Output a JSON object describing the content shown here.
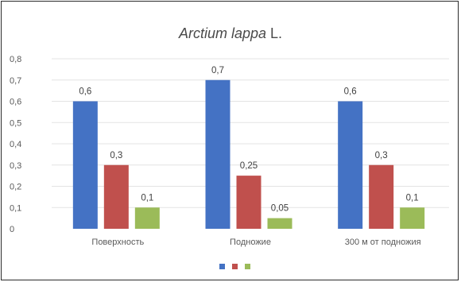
{
  "chart_data": {
    "type": "bar",
    "title": "Arctium lappa L.",
    "title_parts": [
      "Arctium lappa",
      " L."
    ],
    "categories": [
      "Поверхность",
      "Подножие",
      "300 м от подножия"
    ],
    "series": [
      {
        "values": [
          0.6,
          0.7,
          0.6
        ],
        "labels": [
          "0,6",
          "0,7",
          "0,6"
        ],
        "color": "#4472C4"
      },
      {
        "values": [
          0.3,
          0.25,
          0.3
        ],
        "labels": [
          "0,3",
          "0,25",
          "0,3"
        ],
        "color": "#C0504D"
      },
      {
        "values": [
          0.1,
          0.05,
          0.1
        ],
        "labels": [
          "0,1",
          "0,05",
          "0,1"
        ],
        "color": "#9BBB59"
      }
    ],
    "ylim": [
      0,
      0.8
    ],
    "yticks": [
      "0",
      "0,1",
      "0,2",
      "0,3",
      "0,4",
      "0,5",
      "0,6",
      "0,7",
      "0,8"
    ],
    "grid": true,
    "legend": "bottom"
  }
}
